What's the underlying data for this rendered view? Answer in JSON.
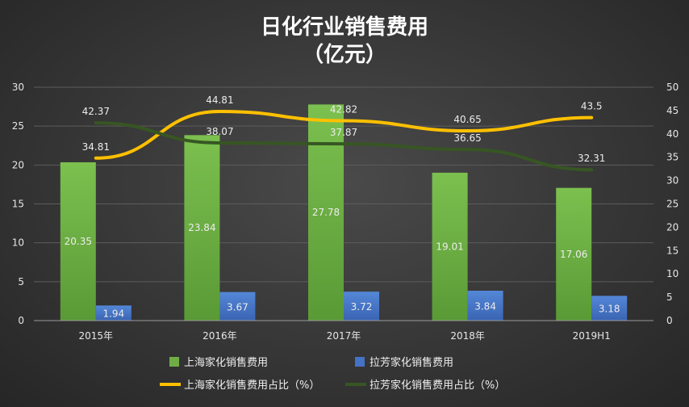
{
  "chart_data": {
    "type": "bar",
    "title_line1": "日化行业销售费用",
    "title_line2": "（亿元）",
    "categories": [
      "2015年",
      "2016年",
      "2017年",
      "2018年",
      "2019H1"
    ],
    "left_axis": {
      "min": 0,
      "max": 30,
      "step": 5,
      "ticks": [
        "0",
        "5",
        "10",
        "15",
        "20",
        "25",
        "30"
      ]
    },
    "right_axis": {
      "min": 0,
      "max": 50,
      "step": 5,
      "ticks": [
        "0",
        "5",
        "10",
        "15",
        "20",
        "25",
        "30",
        "35",
        "40",
        "45",
        "50"
      ]
    },
    "series": [
      {
        "name": "上海家化销售费用",
        "kind": "bar",
        "axis": "left",
        "color": "#70ad47",
        "values": [
          20.35,
          23.84,
          27.78,
          19.01,
          17.06
        ],
        "labels": [
          "20.35",
          "23.84",
          "27.78",
          "19.01",
          "17.06"
        ]
      },
      {
        "name": "拉芳家化销售费用",
        "kind": "bar",
        "axis": "left",
        "color": "#4472c4",
        "values": [
          1.94,
          3.67,
          3.72,
          3.84,
          3.18
        ],
        "labels": [
          "1.94",
          "3.67",
          "3.72",
          "3.84",
          "3.18"
        ]
      },
      {
        "name": "上海家化销售费用占比（%）",
        "kind": "line",
        "axis": "right",
        "color": "#ffc000",
        "values": [
          34.81,
          44.81,
          42.82,
          40.65,
          43.5
        ],
        "labels": [
          "34.81",
          "44.81",
          "42.82",
          "40.65",
          "43.5"
        ]
      },
      {
        "name": "拉芳家化销售费用占比（%）",
        "kind": "line",
        "axis": "right",
        "color": "#375623",
        "values": [
          42.37,
          38.07,
          37.87,
          36.65,
          32.31
        ],
        "labels": [
          "42.37",
          "38.07",
          "37.87",
          "36.65",
          "32.31"
        ]
      }
    ],
    "grid": true,
    "legend": "bottom"
  }
}
